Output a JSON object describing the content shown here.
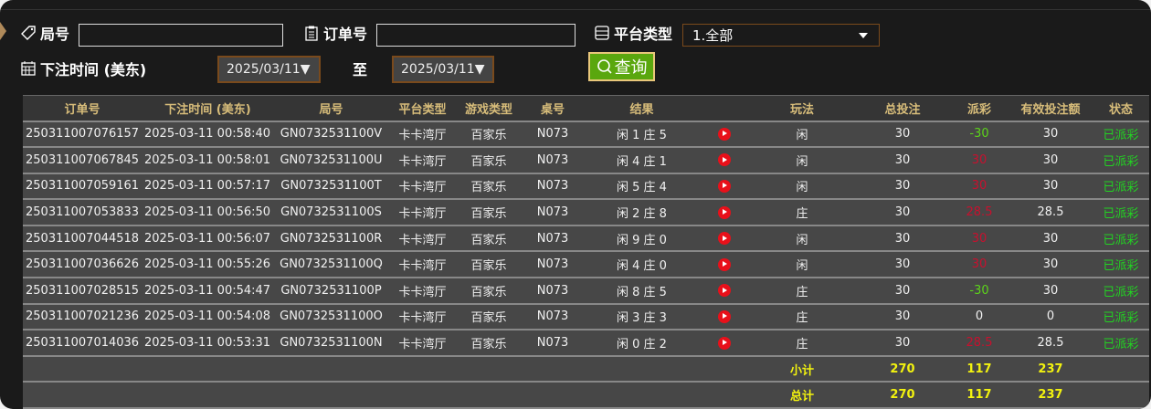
{
  "filters": {
    "round_label": "局号",
    "round_value": "",
    "order_label": "订单号",
    "order_value": "",
    "platform_label": "平台类型",
    "platform_value": "1.全部",
    "time_label": "下注时间 (美东)",
    "date_from": "2025/03/11▼",
    "to_label": "至",
    "date_to": "2025/03/11▼",
    "query_label": "查询"
  },
  "colors": {
    "accent_header": "#d8bd7a",
    "negative": "#5cd41a",
    "positive": "#c8102e",
    "status": "#22d322",
    "query_button": "#5aa70e"
  },
  "table": {
    "headers": [
      "订单号",
      "下注时间 (美东)",
      "局号",
      "平台类型",
      "游戏类型",
      "桌号",
      "结果",
      "",
      "玩法",
      "总投注",
      "派彩",
      "有效投注额",
      "状态"
    ],
    "rows": [
      {
        "order": "250311007076157",
        "time": "2025-03-11 00:58:40",
        "round": "GN0732531100V",
        "platform": "卡卡湾厅",
        "game": "百家乐",
        "table": "N073",
        "result": "闲 1 庄 5",
        "play": "闲",
        "bet": "30",
        "payout": "-30",
        "ptype": "neg",
        "valid": "30",
        "status": "已派彩"
      },
      {
        "order": "250311007067845",
        "time": "2025-03-11 00:58:01",
        "round": "GN0732531100U",
        "platform": "卡卡湾厅",
        "game": "百家乐",
        "table": "N073",
        "result": "闲 4 庄 1",
        "play": "闲",
        "bet": "30",
        "payout": "30",
        "ptype": "pos",
        "valid": "30",
        "status": "已派彩"
      },
      {
        "order": "250311007059161",
        "time": "2025-03-11 00:57:17",
        "round": "GN0732531100T",
        "platform": "卡卡湾厅",
        "game": "百家乐",
        "table": "N073",
        "result": "闲 5 庄 4",
        "play": "闲",
        "bet": "30",
        "payout": "30",
        "ptype": "pos",
        "valid": "30",
        "status": "已派彩"
      },
      {
        "order": "250311007053833",
        "time": "2025-03-11 00:56:50",
        "round": "GN0732531100S",
        "platform": "卡卡湾厅",
        "game": "百家乐",
        "table": "N073",
        "result": "闲 2 庄 8",
        "play": "庄",
        "bet": "30",
        "payout": "28.5",
        "ptype": "pos",
        "valid": "28.5",
        "status": "已派彩"
      },
      {
        "order": "250311007044518",
        "time": "2025-03-11 00:56:07",
        "round": "GN0732531100R",
        "platform": "卡卡湾厅",
        "game": "百家乐",
        "table": "N073",
        "result": "闲 9 庄 0",
        "play": "闲",
        "bet": "30",
        "payout": "30",
        "ptype": "pos",
        "valid": "30",
        "status": "已派彩"
      },
      {
        "order": "250311007036626",
        "time": "2025-03-11 00:55:26",
        "round": "GN0732531100Q",
        "platform": "卡卡湾厅",
        "game": "百家乐",
        "table": "N073",
        "result": "闲 4 庄 0",
        "play": "闲",
        "bet": "30",
        "payout": "30",
        "ptype": "pos",
        "valid": "30",
        "status": "已派彩"
      },
      {
        "order": "250311007028515",
        "time": "2025-03-11 00:54:47",
        "round": "GN0732531100P",
        "platform": "卡卡湾厅",
        "game": "百家乐",
        "table": "N073",
        "result": "闲 8 庄 5",
        "play": "庄",
        "bet": "30",
        "payout": "-30",
        "ptype": "neg",
        "valid": "30",
        "status": "已派彩"
      },
      {
        "order": "250311007021236",
        "time": "2025-03-11 00:54:08",
        "round": "GN0732531100O",
        "platform": "卡卡湾厅",
        "game": "百家乐",
        "table": "N073",
        "result": "闲 3 庄 3",
        "play": "庄",
        "bet": "30",
        "payout": "0",
        "ptype": "zero",
        "valid": "0",
        "status": "已派彩"
      },
      {
        "order": "250311007014036",
        "time": "2025-03-11 00:53:31",
        "round": "GN0732531100N",
        "platform": "卡卡湾厅",
        "game": "百家乐",
        "table": "N073",
        "result": "闲 0 庄 2",
        "play": "庄",
        "bet": "30",
        "payout": "28.5",
        "ptype": "pos",
        "valid": "28.5",
        "status": "已派彩"
      }
    ],
    "subtotal": {
      "label": "小计",
      "bet": "270",
      "payout": "117",
      "valid": "237"
    },
    "total": {
      "label": "总计",
      "bet": "270",
      "payout": "117",
      "valid": "237"
    }
  }
}
